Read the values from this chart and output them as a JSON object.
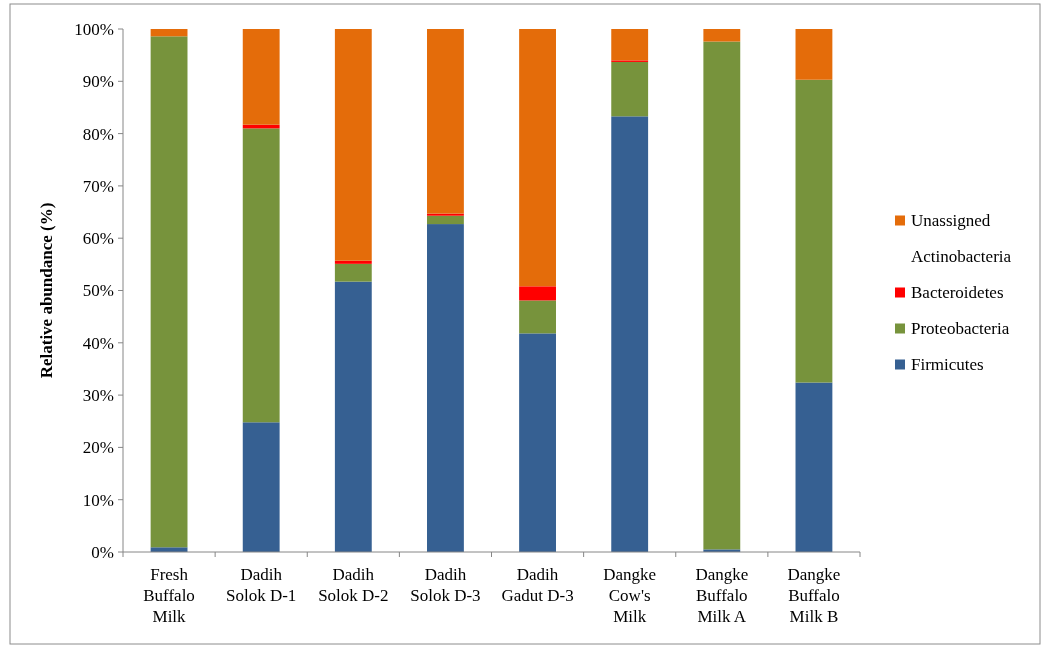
{
  "chart_data": {
    "type": "bar",
    "stacked": true,
    "ylabel": "Relative abundance (%)",
    "categories": [
      "Fresh Buffalo Milk",
      "Dadih Solok D-1",
      "Dadih Solok D-2",
      "Dadih Solok D-3",
      "Dadih Gadut D-3",
      "Dangke Cow's Milk",
      "Dangke Buffalo Milk A",
      "Dangke Buffalo Milk B"
    ],
    "series": [
      {
        "name": "Firmicutes",
        "color": "#366092",
        "values": [
          0.9,
          24.8,
          51.7,
          62.7,
          41.8,
          83.3,
          0.5,
          32.4
        ]
      },
      {
        "name": "Proteobacteria",
        "color": "#77933c",
        "values": [
          97.7,
          56.2,
          3.4,
          1.6,
          6.3,
          10.4,
          97.1,
          57.9
        ]
      },
      {
        "name": "Bacteroidetes",
        "color": "#ff0000",
        "values": [
          0,
          0.7,
          0.6,
          0.4,
          2.7,
          0.3,
          0,
          0
        ]
      },
      {
        "name": "Actinobacteria",
        "values": [
          0,
          0,
          0,
          0,
          0,
          0,
          0,
          0
        ]
      },
      {
        "name": "Unassigned",
        "color": "#e46c0a",
        "values": [
          1.4,
          18.3,
          44.3,
          35.3,
          49.2,
          6.0,
          2.4,
          9.7
        ]
      }
    ],
    "ylim": [
      0,
      100
    ],
    "yticks": [
      {
        "value": 0,
        "label": "0%"
      },
      {
        "value": 10,
        "label": "10%"
      },
      {
        "value": 20,
        "label": "20%"
      },
      {
        "value": 30,
        "label": "30%"
      },
      {
        "value": 40,
        "label": "40%"
      },
      {
        "value": 50,
        "label": "50%"
      },
      {
        "value": 60,
        "label": "60%"
      },
      {
        "value": 70,
        "label": "70%"
      },
      {
        "value": 80,
        "label": "80%"
      },
      {
        "value": 90,
        "label": "90%"
      },
      {
        "value": 100,
        "label": "100%"
      }
    ],
    "grid": false,
    "legend": "right"
  }
}
